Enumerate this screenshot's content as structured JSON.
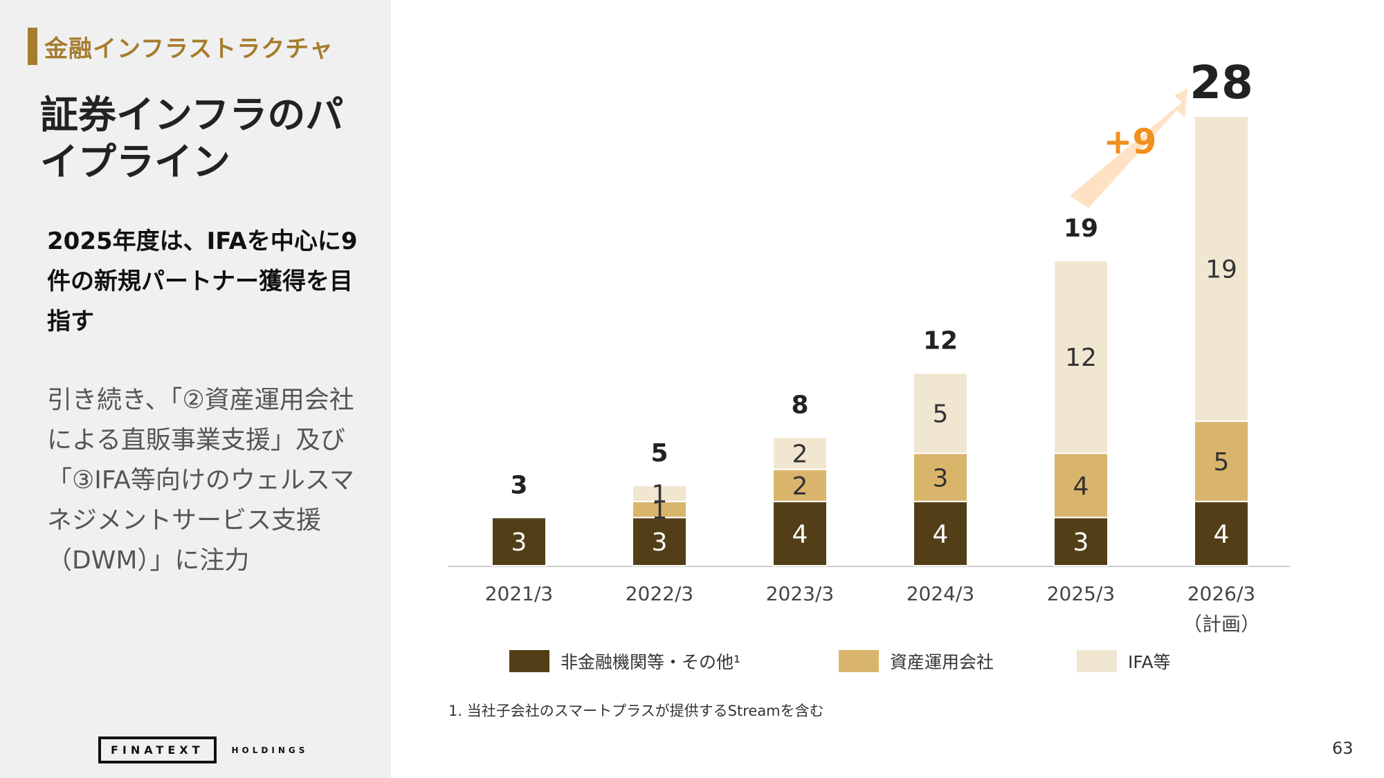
{
  "sidebar": {
    "section_tag": "金融インフラストラクチャ",
    "title": "証券インフラのパイプライン",
    "headline": "2025年度は、IFAを中心に9件の新規パートナー獲得を目指す",
    "body": "引き続き、「②資産運用会社による直販事業支援」及び「③IFA等向けのウェルスマネジメントサービス支援（DWM）」に注力",
    "logo_main": "FINATEXT",
    "logo_sub": "HOLDINGS"
  },
  "colors": {
    "dark": "#533f17",
    "mid": "#d9b56c",
    "light": "#f1e6d0",
    "accent": "#a67c2e",
    "arrow": "#ffe2c4",
    "plus": "#f0901e"
  },
  "chart_data": {
    "type": "bar",
    "stacked": true,
    "categories": [
      "2021/3",
      "2022/3",
      "2023/3",
      "2024/3",
      "2025/3",
      "2026/3\n（計画）"
    ],
    "series": [
      {
        "name": "非金融機関等・その他¹",
        "values": [
          3,
          3,
          4,
          4,
          3,
          4
        ]
      },
      {
        "name": "資産運用会社",
        "values": [
          0,
          1,
          2,
          3,
          4,
          5
        ]
      },
      {
        "name": "IFA等",
        "values": [
          0,
          1,
          2,
          5,
          12,
          19
        ]
      }
    ],
    "totals": [
      3,
      5,
      8,
      12,
      19,
      28
    ],
    "annotation": "+9",
    "legend_position": "bottom",
    "grid": false,
    "ylim": [
      0,
      28
    ]
  },
  "footnote": "1. 当社子会社のスマートプラスが提供するStreamを含む",
  "page_number": "63"
}
